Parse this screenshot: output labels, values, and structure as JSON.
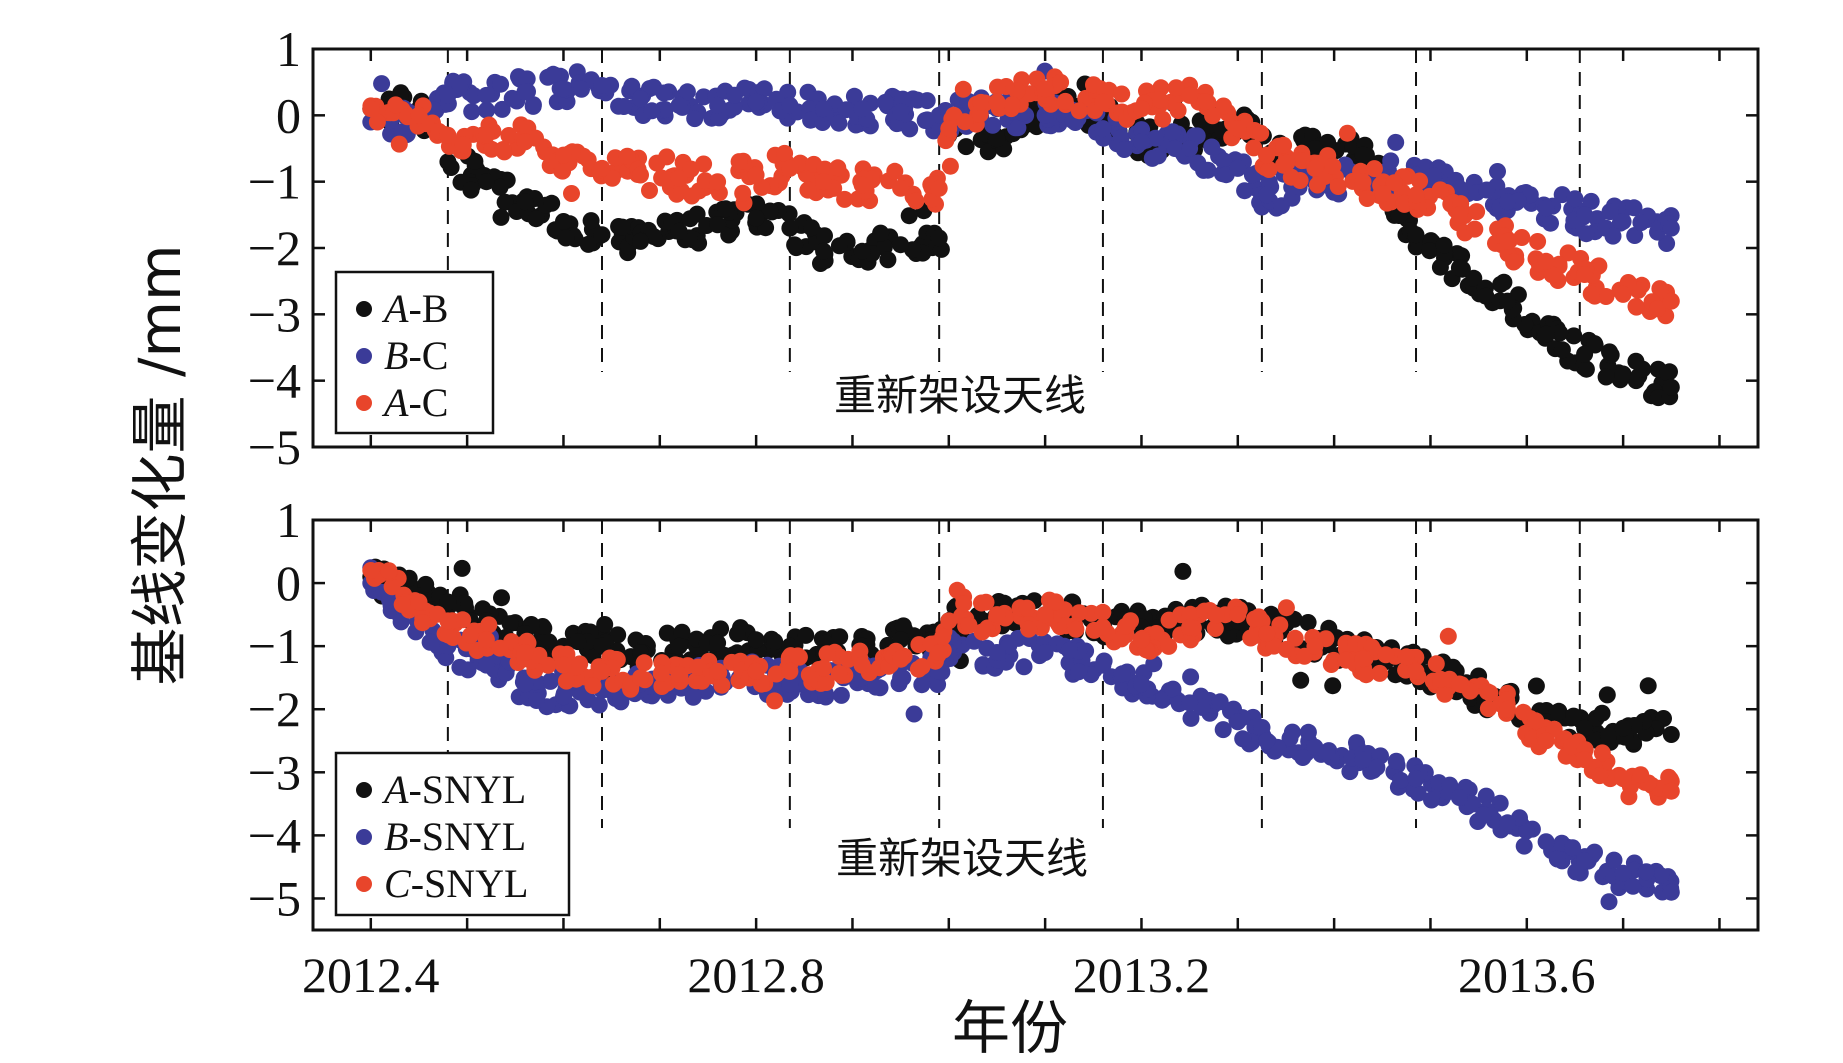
{
  "chart_data": [
    {
      "type": "scatter",
      "panel": "top",
      "title": "",
      "xlabel": "",
      "ylabel": "基线变化量 /mm",
      "ylim": [
        -5,
        1
      ],
      "xlim": [
        2012.34,
        2013.84
      ],
      "yticks": [
        1,
        0,
        -1,
        -2,
        -3,
        -4,
        -5
      ],
      "ytick_labels": [
        "1",
        "0",
        "−1",
        "−2",
        "−3",
        "−4",
        "−5"
      ],
      "event_lines_x": [
        2012.48,
        2012.64,
        2012.835,
        2012.99,
        2013.16,
        2013.325,
        2013.485,
        2013.655
      ],
      "annotation": "重新架设天线",
      "series": [
        {
          "name": "A-B",
          "name_italic": "A",
          "name_rest": "-B",
          "color": "#111111",
          "x": [
            2012.4,
            2012.45,
            2012.48,
            2012.52,
            2012.56,
            2012.6,
            2012.64,
            2012.68,
            2012.72,
            2012.76,
            2012.8,
            2012.835,
            2012.87,
            2012.91,
            2012.95,
            2012.99,
            2013.0,
            2013.05,
            2013.1,
            2013.16,
            2013.2,
            2013.25,
            2013.3,
            2013.33,
            2013.38,
            2013.43,
            2013.485,
            2013.53,
            2013.58,
            2013.62,
            2013.66,
            2013.7,
            2013.75
          ],
          "y": [
            0.1,
            0.1,
            -0.7,
            -1.0,
            -1.3,
            -1.6,
            -1.8,
            -1.9,
            -1.75,
            -1.65,
            -1.55,
            -1.7,
            -2.05,
            -2.05,
            -1.95,
            -1.85,
            -0.3,
            -0.35,
            0.1,
            0.0,
            -0.4,
            -0.3,
            -0.1,
            -0.6,
            -0.5,
            -0.6,
            -1.8,
            -2.3,
            -2.8,
            -3.3,
            -3.6,
            -3.9,
            -4.1
          ]
        },
        {
          "name": "B-C",
          "name_italic": "B",
          "name_rest": "-C",
          "color": "#3b3b98",
          "x": [
            2012.4,
            2012.45,
            2012.48,
            2012.52,
            2012.56,
            2012.6,
            2012.64,
            2012.68,
            2012.72,
            2012.76,
            2012.8,
            2012.835,
            2012.87,
            2012.91,
            2012.95,
            2012.99,
            2013.0,
            2013.05,
            2013.1,
            2013.16,
            2013.2,
            2013.25,
            2013.3,
            2013.33,
            2013.38,
            2013.43,
            2013.485,
            2013.53,
            2013.58,
            2013.62,
            2013.66,
            2013.7,
            2013.75
          ],
          "y": [
            -0.1,
            -0.15,
            0.3,
            0.3,
            0.35,
            0.4,
            0.45,
            0.25,
            0.15,
            0.15,
            0.2,
            0.15,
            0.1,
            0.1,
            0.05,
            0.0,
            0.0,
            0.1,
            0.0,
            -0.2,
            -0.4,
            -0.5,
            -0.8,
            -1.2,
            -1.0,
            -0.9,
            -0.9,
            -1.1,
            -1.3,
            -1.4,
            -1.5,
            -1.6,
            -1.7
          ]
        },
        {
          "name": "A-C",
          "name_italic": "A",
          "name_rest": "-C",
          "color": "#e8452b",
          "x": [
            2012.4,
            2012.45,
            2012.48,
            2012.52,
            2012.56,
            2012.6,
            2012.64,
            2012.68,
            2012.72,
            2012.76,
            2012.8,
            2012.835,
            2012.87,
            2012.91,
            2012.95,
            2012.99,
            2013.0,
            2013.05,
            2013.1,
            2013.16,
            2013.2,
            2013.25,
            2013.3,
            2013.33,
            2013.38,
            2013.43,
            2013.485,
            2013.53,
            2013.58,
            2013.62,
            2013.66,
            2013.7,
            2013.75
          ],
          "y": [
            0.1,
            0.0,
            -0.3,
            -0.3,
            -0.4,
            -0.6,
            -0.8,
            -0.9,
            -0.95,
            -1.0,
            -0.9,
            -0.8,
            -1.0,
            -1.05,
            -1.1,
            -1.1,
            -0.2,
            0.2,
            0.4,
            0.2,
            0.1,
            0.3,
            -0.2,
            -0.6,
            -0.8,
            -1.0,
            -1.2,
            -1.5,
            -1.9,
            -2.2,
            -2.4,
            -2.7,
            -2.8
          ]
        }
      ]
    },
    {
      "type": "scatter",
      "panel": "bottom",
      "title": "",
      "xlabel": "年份",
      "ylabel": "基线变化量 /mm",
      "ylim": [
        -5.5,
        1
      ],
      "xlim": [
        2012.34,
        2013.84
      ],
      "xticks": [
        2012.4,
        2012.8,
        2013.2,
        2013.6
      ],
      "xtick_labels": [
        "2012.4",
        "2012.8",
        "2013.2",
        "2013.6"
      ],
      "yticks": [
        1,
        0,
        -1,
        -2,
        -3,
        -4,
        -5
      ],
      "ytick_labels": [
        "1",
        "0",
        "−1",
        "−2",
        "−3",
        "−4",
        "−5"
      ],
      "event_lines_x": [
        2012.48,
        2012.64,
        2012.835,
        2012.99,
        2013.16,
        2013.325,
        2013.485,
        2013.655
      ],
      "annotation": "重新架设天线",
      "series": [
        {
          "name": "A-SNYL",
          "name_italic": "A",
          "name_rest": "-SNYL",
          "color": "#111111",
          "x": [
            2012.4,
            2012.45,
            2012.48,
            2012.52,
            2012.56,
            2012.6,
            2012.64,
            2012.68,
            2012.72,
            2012.76,
            2012.8,
            2012.835,
            2012.87,
            2012.91,
            2012.95,
            2012.99,
            2013.0,
            2013.05,
            2013.1,
            2013.16,
            2013.2,
            2013.25,
            2013.3,
            2013.33,
            2013.38,
            2013.43,
            2013.485,
            2013.53,
            2013.58,
            2013.62,
            2013.66,
            2013.7,
            2013.75
          ],
          "y": [
            0.1,
            -0.2,
            -0.3,
            -0.6,
            -0.8,
            -1.0,
            -1.0,
            -1.1,
            -1.0,
            -0.95,
            -0.9,
            -1.0,
            -1.1,
            -1.0,
            -0.9,
            -0.9,
            -0.6,
            -0.5,
            -0.5,
            -0.6,
            -0.7,
            -0.6,
            -0.6,
            -0.7,
            -0.9,
            -1.1,
            -1.3,
            -1.6,
            -1.9,
            -2.2,
            -2.3,
            -2.3,
            -2.4
          ]
        },
        {
          "name": "B-SNYL",
          "name_italic": "B",
          "name_rest": "-SNYL",
          "color": "#3b3b98",
          "x": [
            2012.4,
            2012.45,
            2012.48,
            2012.52,
            2012.56,
            2012.6,
            2012.64,
            2012.68,
            2012.72,
            2012.76,
            2012.8,
            2012.835,
            2012.87,
            2012.91,
            2012.95,
            2012.99,
            2013.0,
            2013.05,
            2013.1,
            2013.16,
            2013.2,
            2013.25,
            2013.3,
            2013.33,
            2013.38,
            2013.43,
            2013.485,
            2013.53,
            2013.58,
            2013.62,
            2013.66,
            2013.7,
            2013.75
          ],
          "y": [
            0.0,
            -0.6,
            -1.0,
            -1.3,
            -1.6,
            -1.8,
            -1.7,
            -1.6,
            -1.55,
            -1.5,
            -1.5,
            -1.6,
            -1.6,
            -1.5,
            -1.5,
            -1.4,
            -1.1,
            -1.1,
            -1.1,
            -1.3,
            -1.6,
            -1.9,
            -2.2,
            -2.5,
            -2.6,
            -2.8,
            -3.1,
            -3.4,
            -3.8,
            -4.1,
            -4.4,
            -4.6,
            -4.9
          ]
        },
        {
          "name": "C-SNYL",
          "name_italic": "C",
          "name_rest": "-SNYL",
          "color": "#e8452b",
          "x": [
            2012.4,
            2012.45,
            2012.48,
            2012.52,
            2012.56,
            2012.6,
            2012.64,
            2012.68,
            2012.72,
            2012.76,
            2012.8,
            2012.835,
            2012.87,
            2012.91,
            2012.95,
            2012.99,
            2013.0,
            2013.05,
            2013.1,
            2013.16,
            2013.2,
            2013.25,
            2013.3,
            2013.33,
            2013.38,
            2013.43,
            2013.485,
            2013.53,
            2013.58,
            2013.62,
            2013.66,
            2013.7,
            2013.75
          ],
          "y": [
            0.2,
            -0.3,
            -0.6,
            -0.9,
            -1.1,
            -1.3,
            -1.4,
            -1.5,
            -1.45,
            -1.4,
            -1.4,
            -1.4,
            -1.35,
            -1.3,
            -1.2,
            -1.1,
            -0.6,
            -0.5,
            -0.5,
            -0.7,
            -0.9,
            -0.7,
            -0.5,
            -0.8,
            -1.0,
            -1.2,
            -1.4,
            -1.6,
            -2.0,
            -2.5,
            -2.8,
            -3.1,
            -3.3
          ]
        }
      ]
    }
  ]
}
